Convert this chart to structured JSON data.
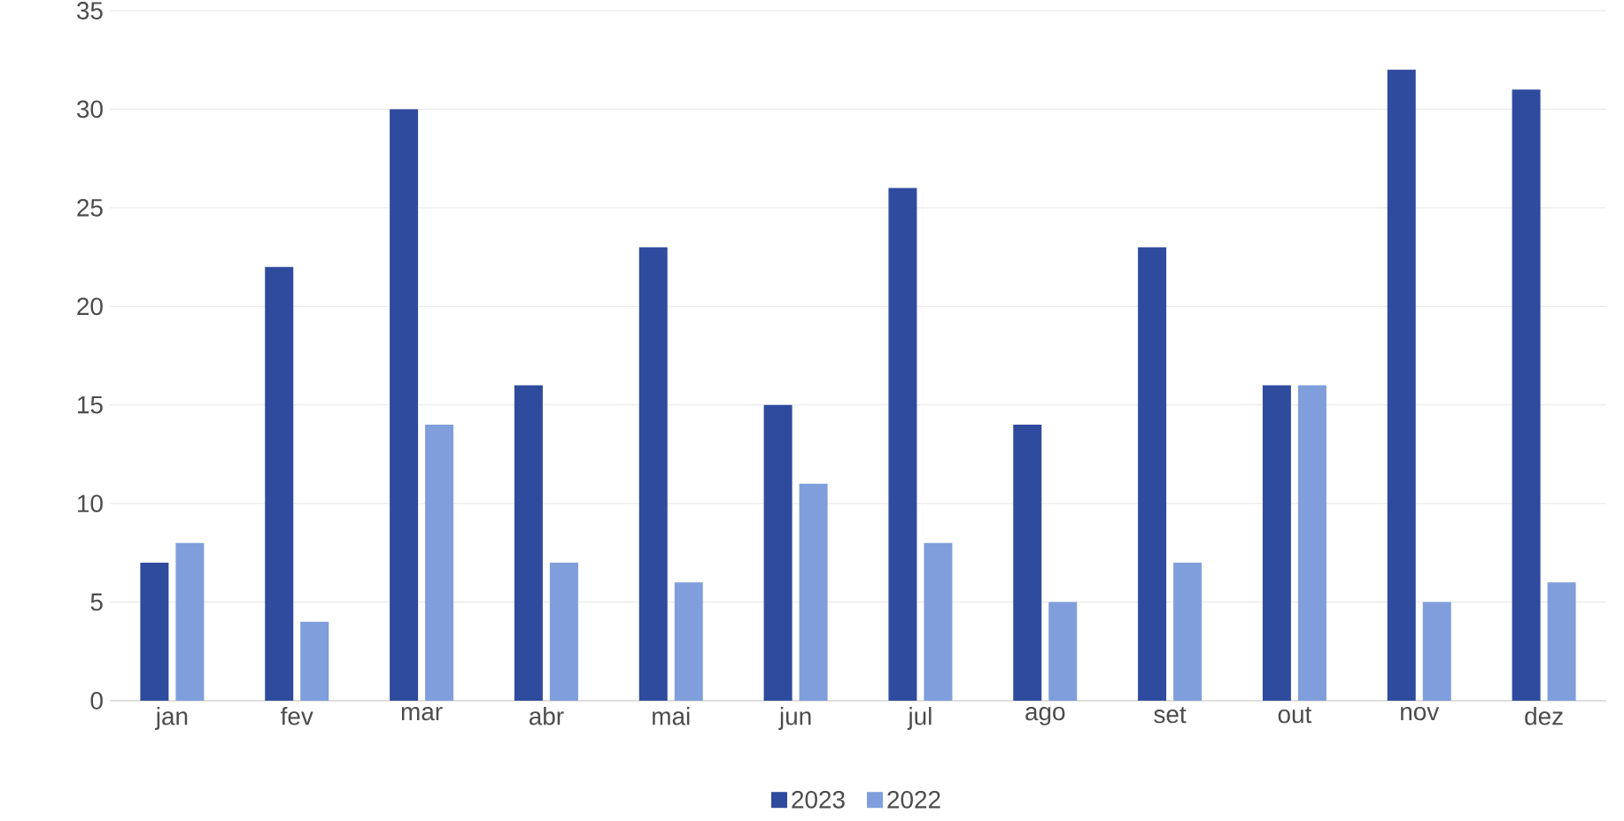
{
  "chart_data": {
    "type": "bar",
    "categories": [
      "jan",
      "fev",
      "mar",
      "abr",
      "mai",
      "jun",
      "jul",
      "ago",
      "set",
      "out",
      "nov",
      "dez"
    ],
    "series": [
      {
        "name": "2023",
        "color": "#2f4b9e",
        "values": [
          7,
          22,
          30,
          16,
          23,
          15,
          26,
          14,
          23,
          16,
          32,
          31
        ]
      },
      {
        "name": "2022",
        "color": "#7f9edb",
        "values": [
          8,
          4,
          14,
          7,
          6,
          11,
          8,
          5,
          7,
          16,
          5,
          6
        ]
      }
    ],
    "ylim": [
      0,
      35
    ],
    "yticks": [
      0,
      5,
      10,
      15,
      20,
      25,
      30,
      35
    ],
    "grid": "y",
    "legend": "bottom"
  }
}
